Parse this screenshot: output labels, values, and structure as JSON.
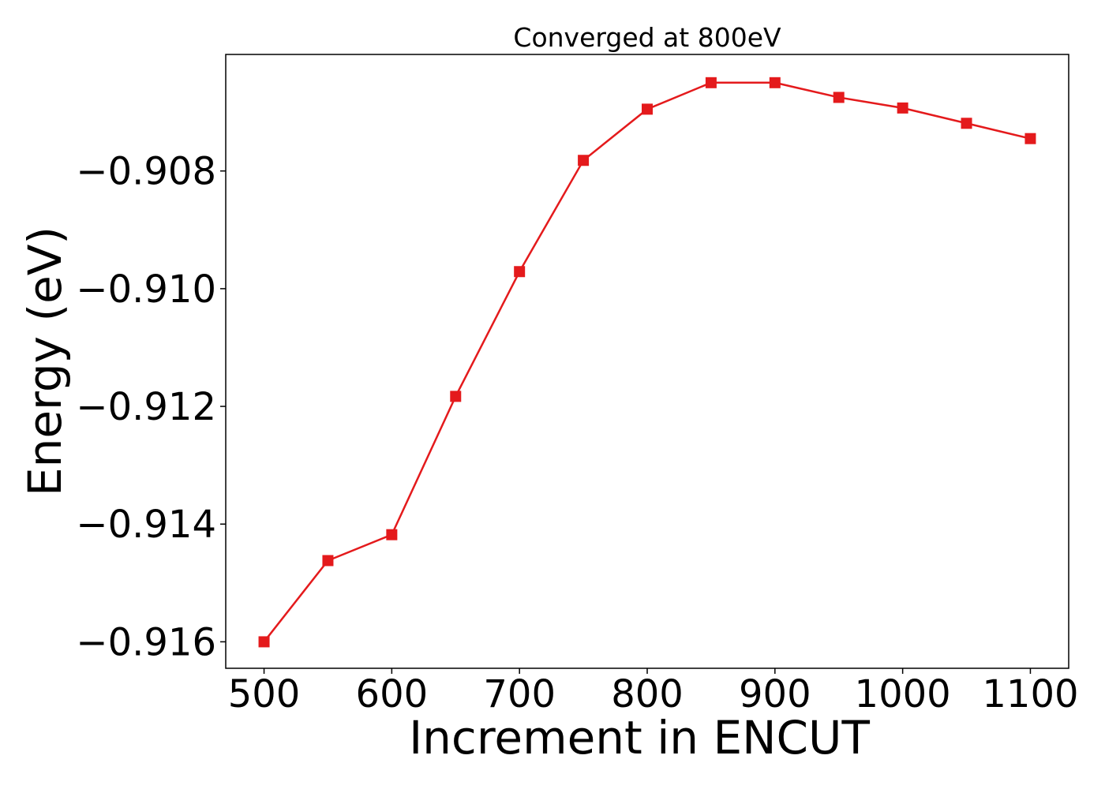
{
  "chart_data": {
    "type": "line",
    "title": "Converged at 800eV",
    "xlabel": "Increment in ENCUT",
    "ylabel": "Energy (eV)",
    "x": [
      500,
      550,
      600,
      650,
      700,
      750,
      800,
      850,
      900,
      950,
      1000,
      1050,
      1100
    ],
    "series": [
      {
        "values": [
          -0.916,
          -0.91462,
          -0.91418,
          -0.91183,
          -0.90971,
          -0.90782,
          -0.90695,
          -0.9065,
          -0.9065,
          -0.90675,
          -0.90693,
          -0.90719,
          -0.90745
        ],
        "color": "#e41a1c",
        "marker": "square"
      }
    ],
    "xticks": [
      500,
      600,
      700,
      800,
      900,
      1000,
      1100
    ],
    "xtick_labels": [
      "500",
      "600",
      "700",
      "800",
      "900",
      "1000",
      "1100"
    ],
    "yticks": [
      -0.916,
      -0.914,
      -0.912,
      -0.91,
      -0.908
    ],
    "ytick_labels": [
      "−0.916",
      "−0.914",
      "−0.912",
      "−0.910",
      "−0.908"
    ],
    "xlim": [
      470,
      1130
    ],
    "ylim": [
      -0.91645,
      -0.90602
    ],
    "grid": false,
    "legend": "none"
  }
}
